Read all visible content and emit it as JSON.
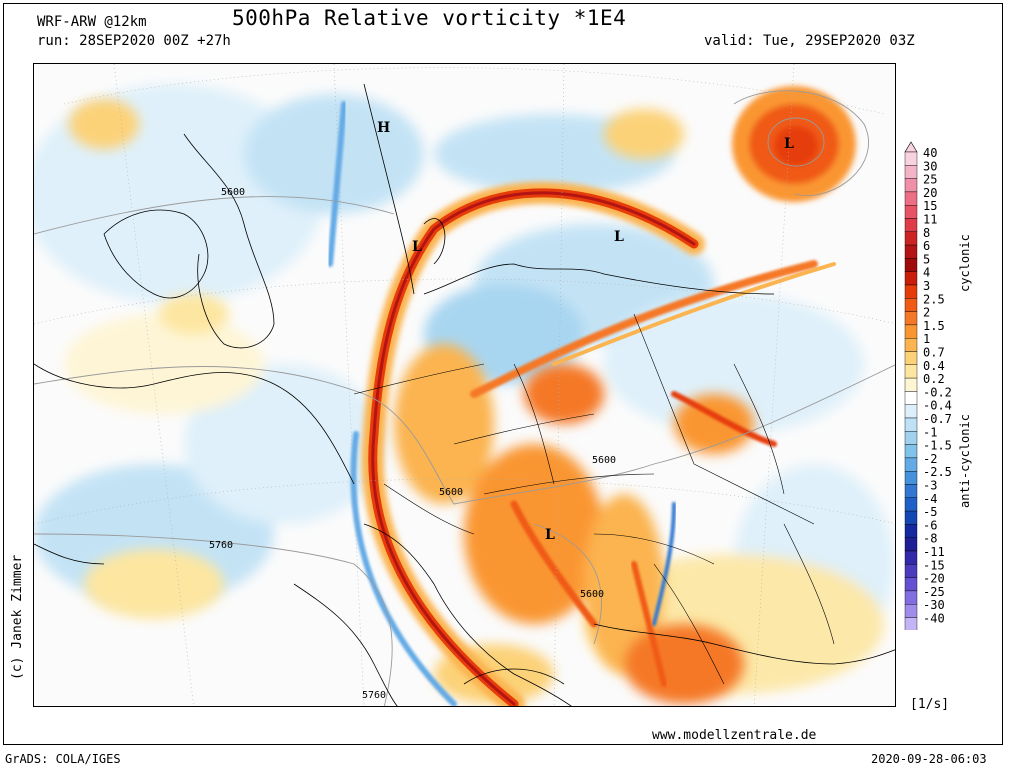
{
  "header": {
    "model": "WRF-ARW @12km",
    "title": "500hPa Relative vorticity *1E4",
    "run": "run: 28SEP2020 00Z +27h",
    "valid": "valid: Tue, 29SEP2020 03Z"
  },
  "footer": {
    "website": "www.modellzentrale.de",
    "grads": "GrADS: COLA/IGES",
    "timestamp": "2020-09-28-06:03",
    "copyright": "(c) Janek Zimmer"
  },
  "legend": {
    "units": "[1/s]",
    "cyclonic_label": "cyclonic",
    "anticyclonic_label": "anti-cyclonic",
    "levels": [
      {
        "label": "40",
        "color": "#f8d2e0"
      },
      {
        "label": "30",
        "color": "#f4b4c8"
      },
      {
        "label": "25",
        "color": "#f08fa8"
      },
      {
        "label": "20",
        "color": "#ec6f86"
      },
      {
        "label": "15",
        "color": "#e65466"
      },
      {
        "label": "11",
        "color": "#e03c48"
      },
      {
        "label": "8",
        "color": "#cc2323"
      },
      {
        "label": "6",
        "color": "#b41414"
      },
      {
        "label": "5",
        "color": "#a00a0a"
      },
      {
        "label": "4",
        "color": "#c81e0a"
      },
      {
        "label": "3",
        "color": "#e63c0a"
      },
      {
        "label": "2.5",
        "color": "#f05a14"
      },
      {
        "label": "2",
        "color": "#f57828"
      },
      {
        "label": "1.5",
        "color": "#fa9632"
      },
      {
        "label": "1",
        "color": "#fbb450"
      },
      {
        "label": "0.7",
        "color": "#fcd278"
      },
      {
        "label": "0.4",
        "color": "#fde6a0"
      },
      {
        "label": "0.2",
        "color": "#fef5d2"
      },
      {
        "label": "-0.2",
        "color": "#ffffff"
      },
      {
        "label": "-0.4",
        "color": "#dceffa"
      },
      {
        "label": "-0.7",
        "color": "#bee1f5"
      },
      {
        "label": "-1",
        "color": "#a0d2f0"
      },
      {
        "label": "-1.5",
        "color": "#82c3eb"
      },
      {
        "label": "-2",
        "color": "#64aae6"
      },
      {
        "label": "-2.5",
        "color": "#4691dc"
      },
      {
        "label": "-3",
        "color": "#3278d2"
      },
      {
        "label": "-4",
        "color": "#1e5fc8"
      },
      {
        "label": "-5",
        "color": "#1446b4"
      },
      {
        "label": "-6",
        "color": "#1428a0"
      },
      {
        "label": "-8",
        "color": "#1e1e96"
      },
      {
        "label": "-11",
        "color": "#3228aa"
      },
      {
        "label": "-15",
        "color": "#4b3cbe"
      },
      {
        "label": "-20",
        "color": "#6450d2"
      },
      {
        "label": "-25",
        "color": "#826ee1"
      },
      {
        "label": "-30",
        "color": "#a08ceb"
      },
      {
        "label": "-40",
        "color": "#c3b4f5"
      }
    ]
  },
  "map": {
    "pressure_labels": [
      {
        "text": "5600"
      },
      {
        "text": "5600"
      },
      {
        "text": "5600"
      },
      {
        "text": "5600"
      },
      {
        "text": "5760"
      },
      {
        "text": "5760"
      }
    ],
    "centers": [
      {
        "text": "H"
      },
      {
        "text": "L"
      },
      {
        "text": "L"
      },
      {
        "text": "L"
      },
      {
        "text": "L"
      }
    ]
  }
}
